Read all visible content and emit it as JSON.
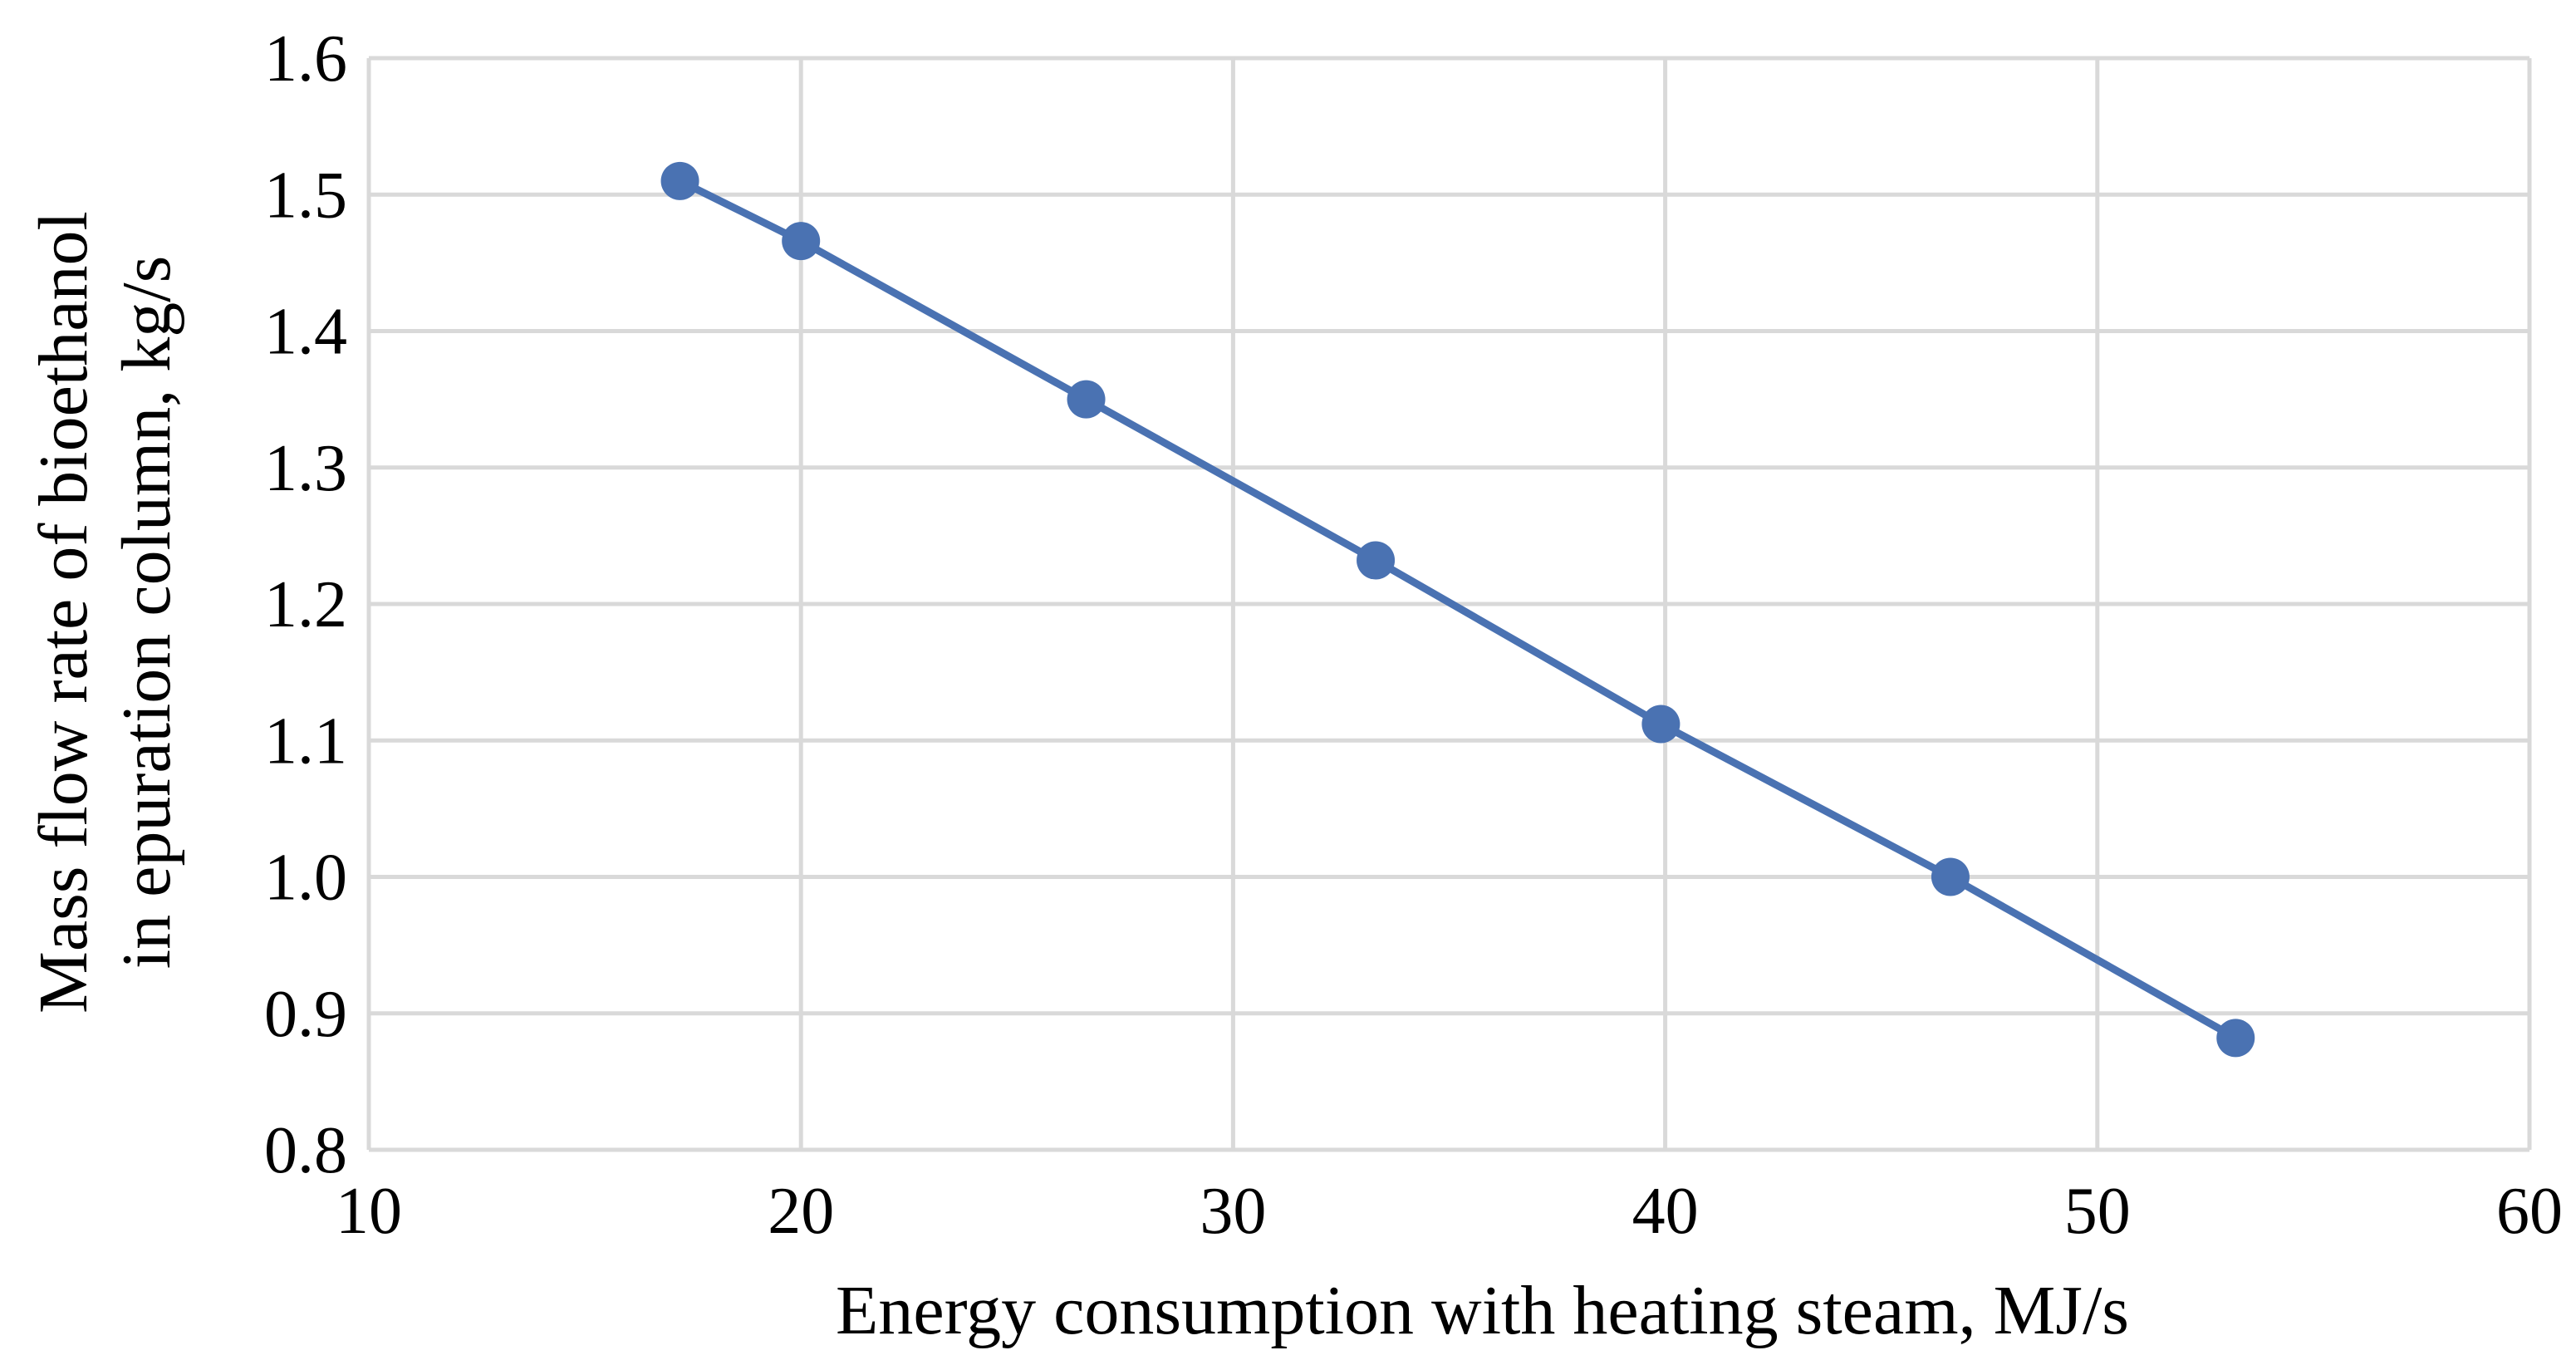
{
  "chart_data": {
    "type": "line",
    "title": "",
    "xlabel": "Energy consumption with heating steam, MJ/s",
    "ylabel_lines": [
      "Mass flow rate of bioethanol",
      "in epuration column, kg/s"
    ],
    "xlim": [
      10,
      60
    ],
    "ylim": [
      0.8,
      1.6
    ],
    "x_ticks": [
      10,
      20,
      30,
      40,
      50,
      60
    ],
    "x_tick_labels": [
      "10",
      "20",
      "30",
      "40",
      "50",
      "60"
    ],
    "y_ticks": [
      0.8,
      0.9,
      1.0,
      1.1,
      1.2,
      1.3,
      1.4,
      1.5,
      1.6
    ],
    "y_tick_labels": [
      "0.8",
      "0.9",
      "1.0",
      "1.1",
      "1.2",
      "1.3",
      "1.4",
      "1.5",
      "1.6"
    ],
    "grid": true,
    "legend": "none",
    "series": [
      {
        "name": "Mass flow rate",
        "color": "#4a72b2",
        "x": [
          17.2,
          20.0,
          26.6,
          33.3,
          39.9,
          46.6,
          53.2
        ],
        "y": [
          1.51,
          1.466,
          1.35,
          1.232,
          1.112,
          1.0,
          0.882
        ]
      }
    ]
  }
}
